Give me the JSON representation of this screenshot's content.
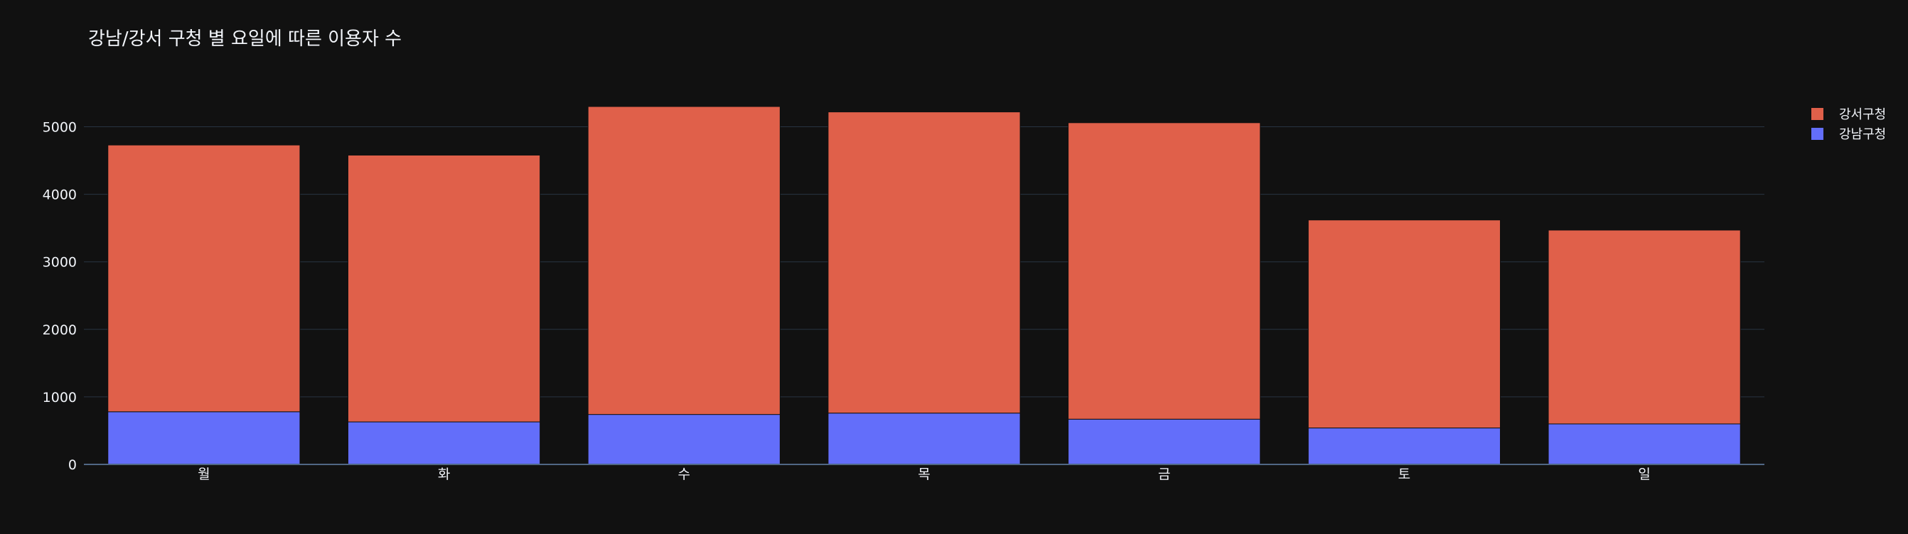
{
  "chart_data": {
    "type": "bar",
    "barmode": "stack",
    "title": "강남/강서 구청 별 요일에 따른 이용자 수",
    "xlabel": "",
    "ylabel": "",
    "categories": [
      "월",
      "화",
      "수",
      "목",
      "금",
      "토",
      "일"
    ],
    "series": [
      {
        "name": "강남구청",
        "color": "#636efa",
        "values": [
          780,
          630,
          740,
          760,
          670,
          540,
          600
        ]
      },
      {
        "name": "강서구청",
        "color": "#e0604a",
        "values": [
          3950,
          3950,
          4560,
          4460,
          4390,
          3080,
          2870
        ]
      }
    ],
    "ylim": [
      0,
      5300
    ],
    "yticks": [
      0,
      1000,
      2000,
      3000,
      4000,
      5000
    ],
    "grid": true,
    "legend_position": "top-right",
    "background": "#111111",
    "grid_color": "#283442"
  }
}
